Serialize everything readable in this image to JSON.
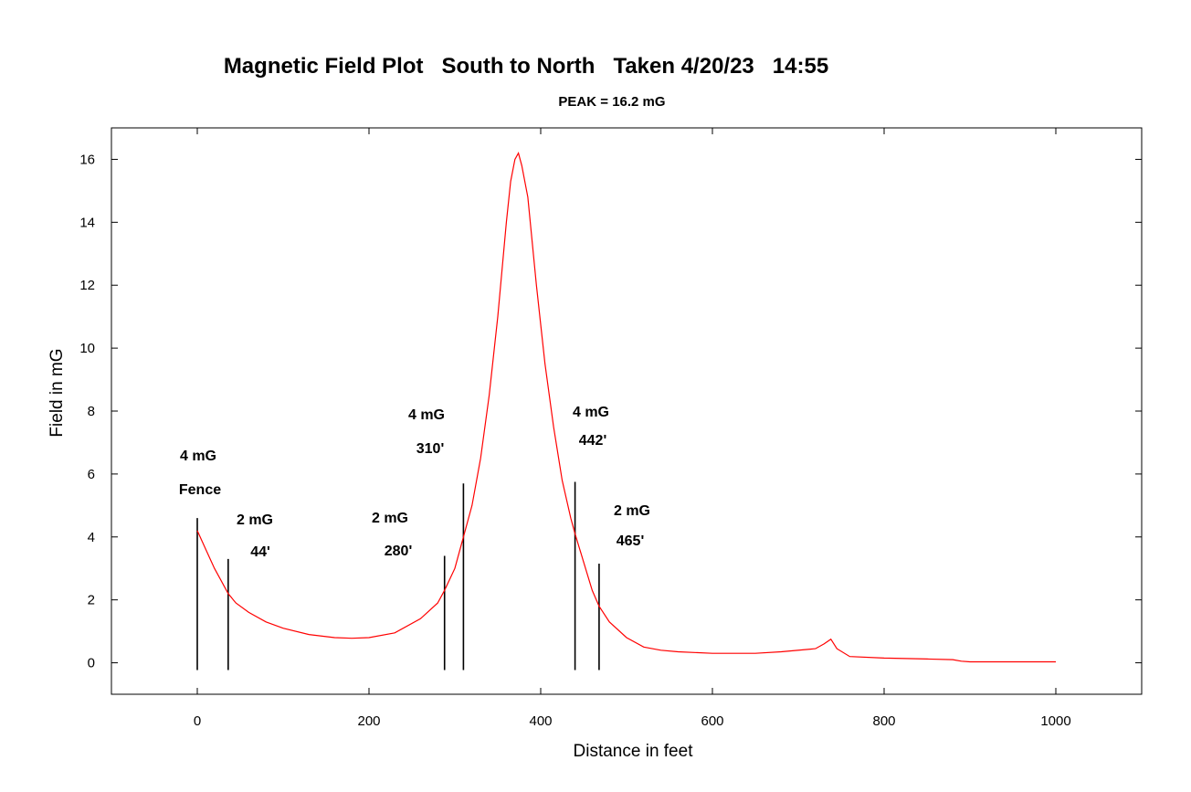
{
  "chart_data": {
    "type": "line",
    "title": "Magnetic Field Plot   South to North   Taken 4/20/23   14:55",
    "subtitle": "PEAK = 16.2 mG",
    "xlabel": "Distance in feet",
    "ylabel": "Field in mG",
    "xlim": [
      -100,
      1100
    ],
    "ylim": [
      -1,
      17
    ],
    "xticks": [
      0,
      200,
      400,
      600,
      800,
      1000
    ],
    "yticks": [
      0,
      2,
      4,
      6,
      8,
      10,
      12,
      14,
      16
    ],
    "grid": false,
    "line_color": "#ff0000",
    "series": [
      {
        "x": [
          0,
          10,
          20,
          30,
          36,
          45,
          60,
          80,
          100,
          130,
          160,
          180,
          200,
          230,
          260,
          280,
          288,
          300,
          310,
          320,
          330,
          340,
          350,
          355,
          360,
          365,
          370,
          374,
          378,
          385,
          395,
          405,
          415,
          425,
          435,
          440,
          450,
          460,
          468,
          480,
          500,
          520,
          540,
          560,
          600,
          650,
          680,
          720,
          730,
          738,
          745,
          760,
          800,
          850,
          880,
          890,
          900,
          1000
        ],
        "y": [
          4.2,
          3.6,
          3.0,
          2.5,
          2.2,
          1.9,
          1.6,
          1.3,
          1.1,
          0.9,
          0.8,
          0.78,
          0.8,
          0.95,
          1.4,
          1.9,
          2.3,
          3.0,
          4.0,
          5.0,
          6.5,
          8.5,
          11.0,
          12.5,
          14.0,
          15.3,
          16.0,
          16.2,
          15.8,
          14.8,
          12.0,
          9.5,
          7.5,
          5.8,
          4.6,
          4.1,
          3.2,
          2.3,
          1.8,
          1.3,
          0.8,
          0.5,
          0.4,
          0.35,
          0.3,
          0.3,
          0.35,
          0.45,
          0.6,
          0.75,
          0.45,
          0.2,
          0.15,
          0.12,
          0.1,
          0.05,
          0.03,
          0.03
        ]
      }
    ],
    "markers": [
      {
        "x": 0,
        "top": 4.6
      },
      {
        "x": 36,
        "top": 3.3
      },
      {
        "x": 288,
        "top": 3.4
      },
      {
        "x": 310,
        "top": 5.7
      },
      {
        "x": 440,
        "top": 5.75
      },
      {
        "x": 468,
        "top": 3.15
      }
    ],
    "annotations": [
      "4 mG",
      "Fence",
      "2 mG",
      "44'",
      "2 mG",
      "280'",
      "4 mG",
      "310'",
      "4 mG",
      "442'",
      "2 mG",
      "465'"
    ]
  }
}
